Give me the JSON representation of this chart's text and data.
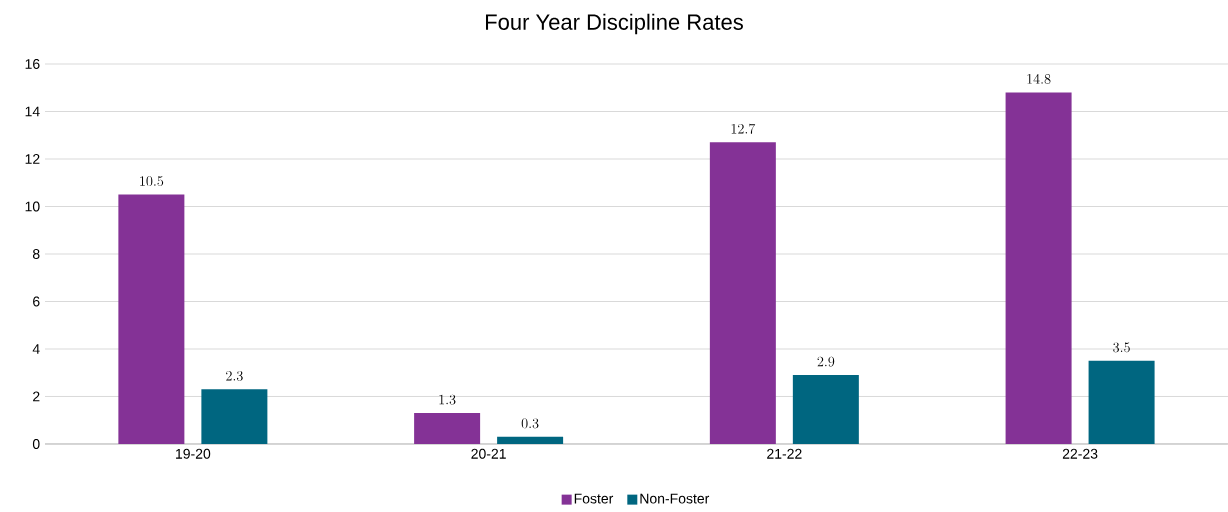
{
  "chart_data": {
    "type": "bar",
    "title": "Four Year Discipline Rates",
    "categories": [
      "19-20",
      "20-21",
      "21-22",
      "22-23"
    ],
    "series": [
      {
        "name": "Foster",
        "color": "#843296",
        "values": [
          10.5,
          1.3,
          12.7,
          14.8
        ]
      },
      {
        "name": "Non-Foster",
        "color": "#006680",
        "values": [
          2.3,
          0.3,
          2.9,
          3.5
        ]
      }
    ],
    "ylim": [
      0,
      16
    ],
    "yticks": [
      0,
      2,
      4,
      6,
      8,
      10,
      12,
      14,
      16
    ],
    "grid": "y",
    "legend": "bottom",
    "data_labels": true
  }
}
